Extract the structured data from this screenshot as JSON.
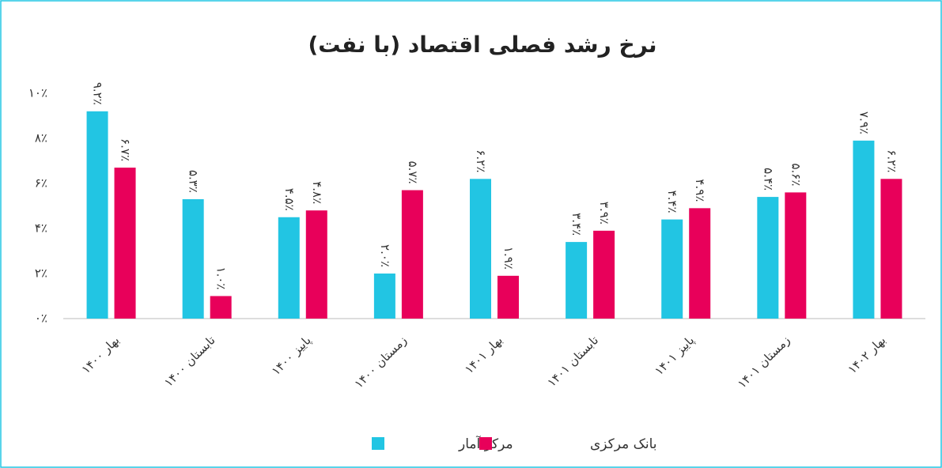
{
  "chart_data": {
    "type": "bar",
    "title": "نرخ رشد فصلی اقتصاد (با نفت)",
    "categories": [
      "بهار ۱۴۰۰",
      "تابستان ۱۴۰۰",
      "پاییز ۱۴۰۰",
      "زمستان ۱۴۰۰",
      "بهار ۱۴۰۱",
      "تابستان ۱۴۰۱",
      "پاییز ۱۴۰۱",
      "زمستان ۱۴۰۱",
      "بهار ۱۴۰۲"
    ],
    "series": [
      {
        "name": "مرکز آمار",
        "color": "#22c5e3",
        "values": [
          9.2,
          5.3,
          4.5,
          2.0,
          6.2,
          3.4,
          4.4,
          5.4,
          7.9
        ],
        "value_labels": [
          "۹.۲٪",
          "۵.۳٪",
          "۴.۵٪",
          "۲.۰٪",
          "۶.۲٪",
          "۳.۴٪",
          "۴.۴٪",
          "۵.۴٪",
          "۷.۹٪"
        ]
      },
      {
        "name": "بانک مرکزی",
        "color": "#e8005a",
        "values": [
          6.7,
          1.0,
          4.8,
          5.7,
          1.9,
          3.9,
          4.9,
          5.6,
          6.2
        ],
        "value_labels": [
          "۶.۷٪",
          "۱.۰٪",
          "۴.۸٪",
          "۵.۷٪",
          "۱.۹٪",
          "۳.۹٪",
          "۴.۹٪",
          "۵.۶٪",
          "۶.۲٪"
        ]
      }
    ],
    "ylim": [
      0,
      10
    ],
    "yticks": [
      {
        "value": 0,
        "label": "۰٪"
      },
      {
        "value": 2,
        "label": "۲٪"
      },
      {
        "value": 4,
        "label": "۴٪"
      },
      {
        "value": 6,
        "label": "۶٪"
      },
      {
        "value": 8,
        "label": "۸٪"
      },
      {
        "value": 10,
        "label": "۱۰٪"
      }
    ],
    "grid": false,
    "legend": "bottom"
  }
}
